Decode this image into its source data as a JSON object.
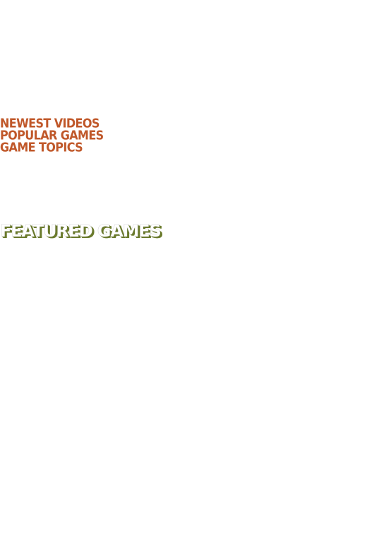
{
  "nav": {
    "links": [
      {
        "label": "NEWEST VIDEOS"
      },
      {
        "label": "POPULAR GAMES"
      },
      {
        "label": "GAME TOPICS"
      }
    ],
    "link_color": "#c0582a"
  },
  "featured": {
    "heading": "FEATURED GAMES",
    "text_color": "#ffffff",
    "shadow_color": "#6b7b2c"
  }
}
